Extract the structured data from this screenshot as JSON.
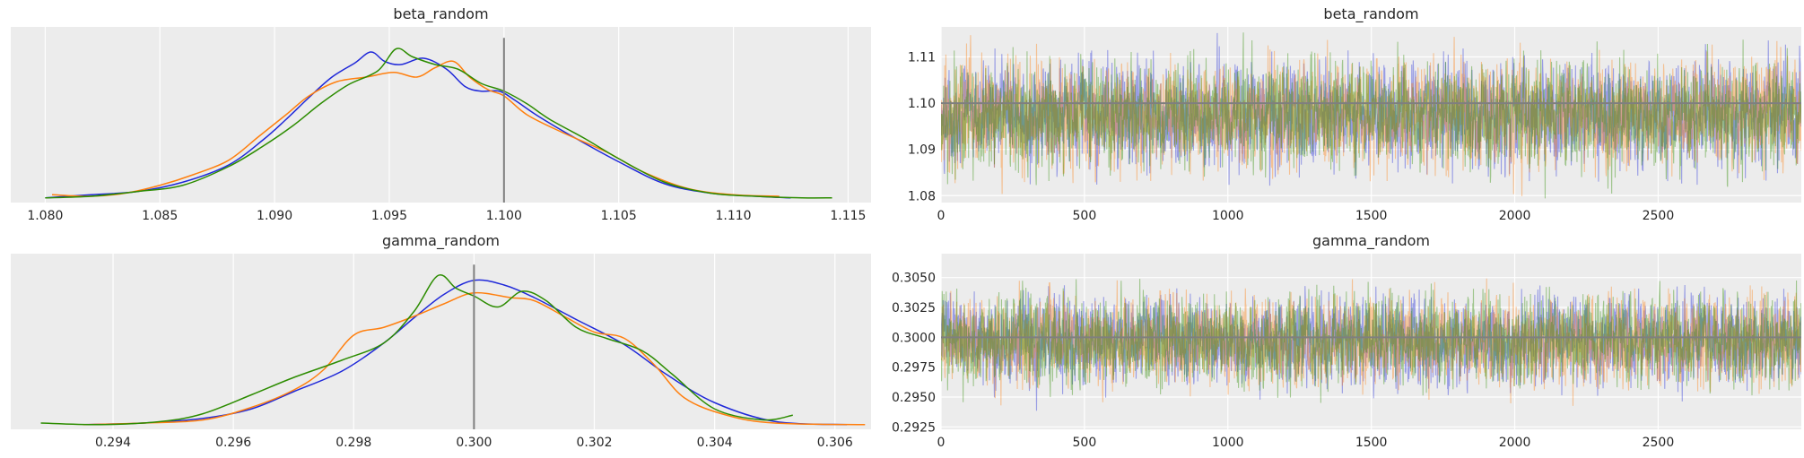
{
  "chart_data": [
    {
      "type": "line",
      "panel": "density",
      "title": "beta_random",
      "xlim": [
        1.0785,
        1.116
      ],
      "xticks": [
        1.08,
        1.085,
        1.09,
        1.095,
        1.1,
        1.105,
        1.11,
        1.115
      ],
      "xtick_labels": [
        "1.080",
        "1.085",
        "1.090",
        "1.095",
        "1.100",
        "1.105",
        "1.110",
        "1.115"
      ],
      "ylim": [
        0,
        1.12
      ],
      "yticks_shown": false,
      "reference_line": 1.1,
      "series": [
        {
          "color": "#1f28d9",
          "x": [
            1.08,
            1.082,
            1.084,
            1.086,
            1.088,
            1.0895,
            1.0905,
            1.0915,
            1.0925,
            1.0935,
            1.0942,
            1.0948,
            1.0955,
            1.0965,
            1.0975,
            1.0983,
            1.099,
            1.0998,
            1.1005,
            1.1015,
            1.103,
            1.105,
            1.107,
            1.109,
            1.111,
            1.1125
          ],
          "y": [
            0.03,
            0.05,
            0.07,
            0.13,
            0.24,
            0.4,
            0.53,
            0.67,
            0.8,
            0.89,
            0.96,
            0.9,
            0.88,
            0.92,
            0.85,
            0.74,
            0.71,
            0.71,
            0.65,
            0.55,
            0.42,
            0.26,
            0.12,
            0.06,
            0.04,
            0.03
          ]
        },
        {
          "color": "#ff7f0e",
          "x": [
            1.0803,
            1.082,
            1.0835,
            1.085,
            1.0865,
            1.088,
            1.0893,
            1.0905,
            1.0915,
            1.0927,
            1.094,
            1.0952,
            1.0962,
            1.097,
            1.0978,
            1.0985,
            1.0993,
            1.1,
            1.101,
            1.1025,
            1.1045,
            1.106,
            1.108,
            1.11,
            1.112
          ],
          "y": [
            0.05,
            0.04,
            0.06,
            0.11,
            0.18,
            0.27,
            0.42,
            0.56,
            0.68,
            0.77,
            0.8,
            0.83,
            0.8,
            0.86,
            0.9,
            0.8,
            0.72,
            0.68,
            0.56,
            0.45,
            0.32,
            0.2,
            0.09,
            0.05,
            0.04
          ]
        },
        {
          "color": "#2c8c00",
          "x": [
            1.08,
            1.082,
            1.084,
            1.086,
            1.088,
            1.0895,
            1.0908,
            1.092,
            1.0932,
            1.0945,
            1.0953,
            1.096,
            1.097,
            1.098,
            1.099,
            1.1,
            1.101,
            1.102,
            1.1035,
            1.105,
            1.107,
            1.109,
            1.111,
            1.113,
            1.1143
          ],
          "y": [
            0.03,
            0.04,
            0.07,
            0.11,
            0.23,
            0.36,
            0.49,
            0.63,
            0.75,
            0.84,
            0.98,
            0.93,
            0.88,
            0.85,
            0.76,
            0.71,
            0.63,
            0.53,
            0.41,
            0.28,
            0.13,
            0.06,
            0.04,
            0.03,
            0.03
          ]
        }
      ]
    },
    {
      "type": "line",
      "panel": "trace",
      "title": "beta_random",
      "xlim": [
        0,
        2999
      ],
      "xticks": [
        0,
        500,
        1000,
        1500,
        2000,
        2500
      ],
      "xtick_labels": [
        "0",
        "500",
        "1000",
        "1500",
        "2000",
        "2500"
      ],
      "ylim": [
        1.0785,
        1.1165
      ],
      "yticks": [
        1.08,
        1.09,
        1.1,
        1.11
      ],
      "ytick_labels": [
        "1.08",
        "1.09",
        "1.10",
        "1.11"
      ],
      "reference_line": 1.1,
      "n_draws": 3000,
      "series": [
        {
          "color": "#1f28d9",
          "mean": 1.0975,
          "sd": 0.0055
        },
        {
          "color": "#ff7f0e",
          "mean": 1.0975,
          "sd": 0.0055
        },
        {
          "color": "#2c8c00",
          "mean": 1.0975,
          "sd": 0.0055
        }
      ]
    },
    {
      "type": "line",
      "panel": "density",
      "title": "gamma_random",
      "xlim": [
        0.2923,
        0.3066
      ],
      "xticks": [
        0.294,
        0.296,
        0.298,
        0.3,
        0.302,
        0.304,
        0.306
      ],
      "xtick_labels": [
        "0.294",
        "0.296",
        "0.298",
        "0.300",
        "0.302",
        "0.304",
        "0.306"
      ],
      "ylim": [
        0,
        1.12
      ],
      "yticks_shown": false,
      "reference_line": 0.3,
      "series": [
        {
          "color": "#1f28d9",
          "x": [
            0.2935,
            0.2945,
            0.2955,
            0.2963,
            0.297,
            0.2978,
            0.2985,
            0.299,
            0.2995,
            0.3,
            0.3005,
            0.301,
            0.3017,
            0.3025,
            0.3032,
            0.304,
            0.305,
            0.3062
          ],
          "y": [
            0.03,
            0.04,
            0.07,
            0.13,
            0.24,
            0.37,
            0.55,
            0.71,
            0.86,
            0.95,
            0.92,
            0.84,
            0.7,
            0.54,
            0.35,
            0.17,
            0.05,
            0.03
          ]
        },
        {
          "color": "#ff7f0e",
          "x": [
            0.2935,
            0.2945,
            0.2955,
            0.2963,
            0.297,
            0.2975,
            0.298,
            0.2985,
            0.299,
            0.2995,
            0.3,
            0.3006,
            0.301,
            0.3015,
            0.302,
            0.3025,
            0.303,
            0.3035,
            0.3042,
            0.305,
            0.3065
          ],
          "y": [
            0.03,
            0.04,
            0.06,
            0.14,
            0.25,
            0.38,
            0.6,
            0.65,
            0.72,
            0.8,
            0.87,
            0.84,
            0.82,
            0.72,
            0.62,
            0.58,
            0.41,
            0.2,
            0.09,
            0.04,
            0.03
          ]
        },
        {
          "color": "#2c8c00",
          "x": [
            0.2928,
            0.2938,
            0.2948,
            0.2955,
            0.2963,
            0.297,
            0.2978,
            0.2985,
            0.299,
            0.2994,
            0.2997,
            0.3,
            0.3004,
            0.3008,
            0.3012,
            0.3017,
            0.3022,
            0.3028,
            0.3033,
            0.304,
            0.3048,
            0.3053
          ],
          "y": [
            0.04,
            0.03,
            0.05,
            0.1,
            0.22,
            0.33,
            0.44,
            0.55,
            0.75,
            0.98,
            0.9,
            0.85,
            0.78,
            0.88,
            0.82,
            0.65,
            0.58,
            0.5,
            0.35,
            0.13,
            0.06,
            0.09
          ]
        }
      ]
    },
    {
      "type": "line",
      "panel": "trace",
      "title": "gamma_random",
      "xlim": [
        0,
        2999
      ],
      "xticks": [
        0,
        500,
        1000,
        1500,
        2000,
        2500
      ],
      "xtick_labels": [
        "0",
        "500",
        "1000",
        "1500",
        "2000",
        "2500"
      ],
      "ylim": [
        0.2923,
        0.307
      ],
      "yticks": [
        0.2925,
        0.295,
        0.2975,
        0.3,
        0.3025,
        0.305
      ],
      "ytick_labels": [
        "0.2925",
        "0.2950",
        "0.2975",
        "0.3000",
        "0.3025",
        "0.3050"
      ],
      "reference_line": 0.3,
      "n_draws": 3000,
      "series": [
        {
          "color": "#1f28d9",
          "mean": 0.2997,
          "sd": 0.0018
        },
        {
          "color": "#ff7f0e",
          "mean": 0.2997,
          "sd": 0.0018
        },
        {
          "color": "#2c8c00",
          "mean": 0.2997,
          "sd": 0.0018
        }
      ]
    }
  ],
  "style": {
    "axes_background": "#ececec",
    "grid_color": "#ffffff",
    "reference_line_color": "#7f7f7f"
  }
}
